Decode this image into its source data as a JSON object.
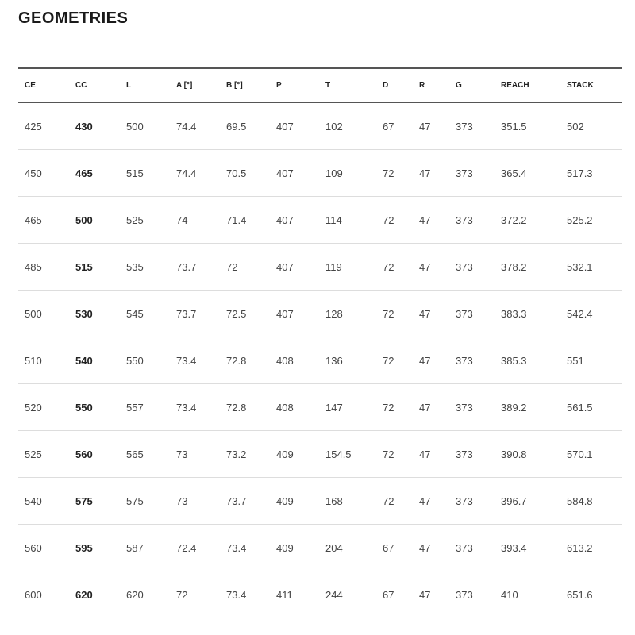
{
  "title": "GEOMETRIES",
  "table": {
    "headers": [
      "CE",
      "CC",
      "L",
      "A [°]",
      "B [°]",
      "P",
      "T",
      "D",
      "R",
      "G",
      "REACH",
      "STACK"
    ],
    "rows": [
      [
        "425",
        "430",
        "500",
        "74.4",
        "69.5",
        "407",
        "102",
        "67",
        "47",
        "373",
        "351.5",
        "502"
      ],
      [
        "450",
        "465",
        "515",
        "74.4",
        "70.5",
        "407",
        "109",
        "72",
        "47",
        "373",
        "365.4",
        "517.3"
      ],
      [
        "465",
        "500",
        "525",
        "74",
        "71.4",
        "407",
        "114",
        "72",
        "47",
        "373",
        "372.2",
        "525.2"
      ],
      [
        "485",
        "515",
        "535",
        "73.7",
        "72",
        "407",
        "119",
        "72",
        "47",
        "373",
        "378.2",
        "532.1"
      ],
      [
        "500",
        "530",
        "545",
        "73.7",
        "72.5",
        "407",
        "128",
        "72",
        "47",
        "373",
        "383.3",
        "542.4"
      ],
      [
        "510",
        "540",
        "550",
        "73.4",
        "72.8",
        "408",
        "136",
        "72",
        "47",
        "373",
        "385.3",
        "551"
      ],
      [
        "520",
        "550",
        "557",
        "73.4",
        "72.8",
        "408",
        "147",
        "72",
        "47",
        "373",
        "389.2",
        "561.5"
      ],
      [
        "525",
        "560",
        "565",
        "73",
        "73.2",
        "409",
        "154.5",
        "72",
        "47",
        "373",
        "390.8",
        "570.1"
      ],
      [
        "540",
        "575",
        "575",
        "73",
        "73.7",
        "409",
        "168",
        "72",
        "47",
        "373",
        "396.7",
        "584.8"
      ],
      [
        "560",
        "595",
        "587",
        "72.4",
        "73.4",
        "409",
        "204",
        "67",
        "47",
        "373",
        "393.4",
        "613.2"
      ],
      [
        "600",
        "620",
        "620",
        "72",
        "73.4",
        "411",
        "244",
        "67",
        "47",
        "373",
        "410",
        "651.6"
      ]
    ]
  }
}
